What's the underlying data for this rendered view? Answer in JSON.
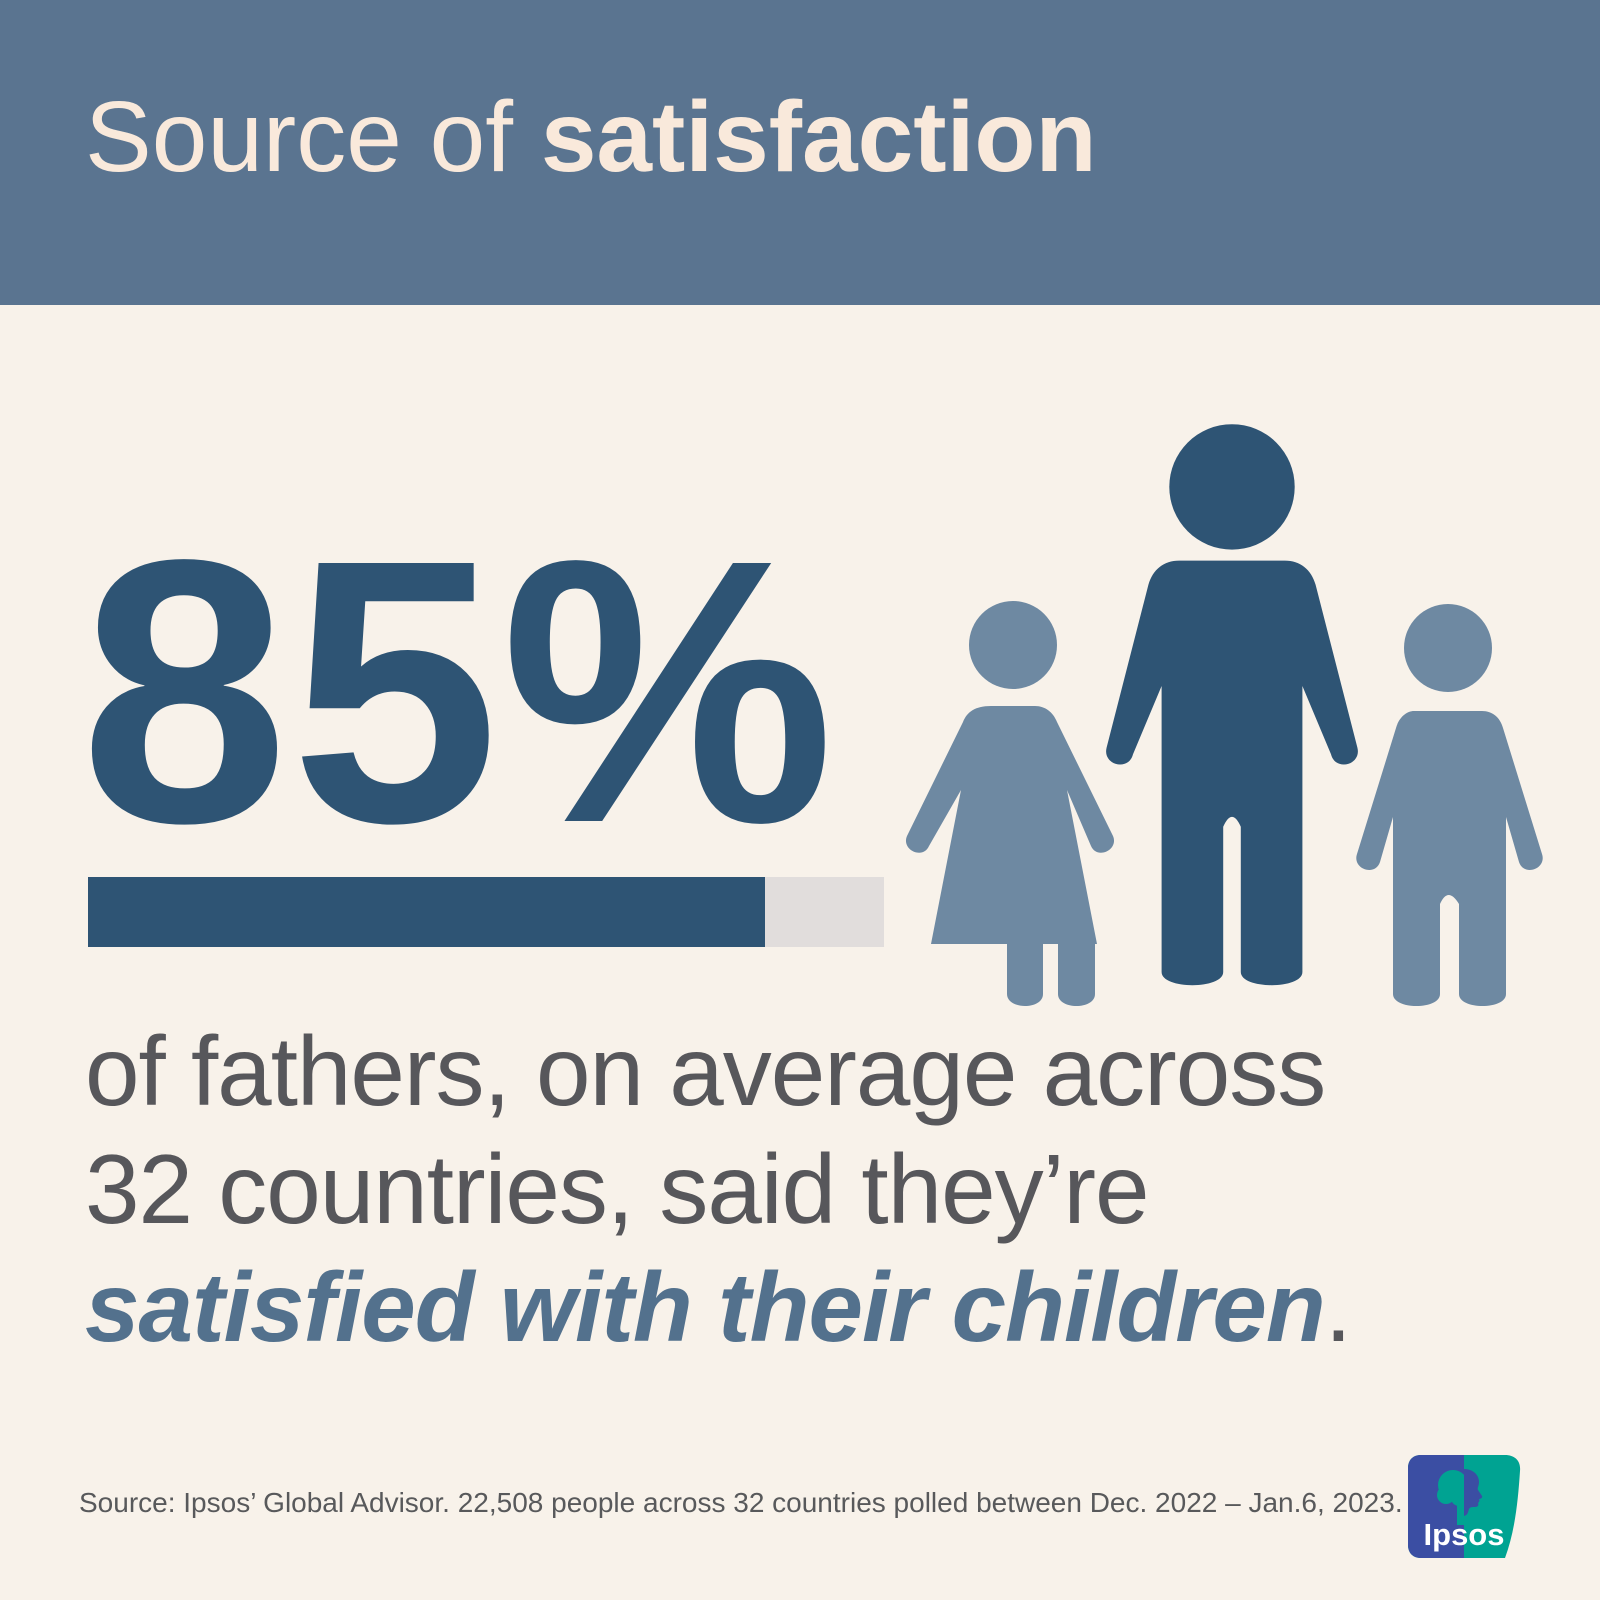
{
  "background_color": "#F8F2EA",
  "header": {
    "title_regular": "Source of ",
    "title_bold": "satisfaction",
    "bg_color": "#5A7490",
    "text_color": "#F9E9DB"
  },
  "stat": {
    "value": "85%",
    "percent": 85,
    "color": "#2E5474"
  },
  "progress_bar": {
    "percent": 85,
    "fill_color": "#2E5474",
    "track_color": "#E1DDDC"
  },
  "family_icons": {
    "figures": [
      "girl",
      "father",
      "boy"
    ],
    "father_color": "#2E5474",
    "children_color": "#6E89A2"
  },
  "description": {
    "line1": "of fathers, on average across",
    "line2": "32 countries, said they’re",
    "highlight": "satisfied with their children",
    "period": ".",
    "text_color": "#57575B",
    "highlight_color": "#53718D"
  },
  "footer": {
    "source_text": "Source: Ipsos’ Global Advisor. 22,508 people across 32 countries polled between Dec. 2022 – Jan.6, 2023."
  },
  "logo": {
    "brand": "Ipsos",
    "blue": "#3B4EA3",
    "teal": "#00A392"
  },
  "chart_data": {
    "type": "bar",
    "categories": [
      "Fathers satisfied with their children"
    ],
    "values": [
      85
    ],
    "unit": "%",
    "title": "Source of satisfaction",
    "xlim": [
      0,
      100
    ],
    "legend": "none",
    "grid": false
  }
}
